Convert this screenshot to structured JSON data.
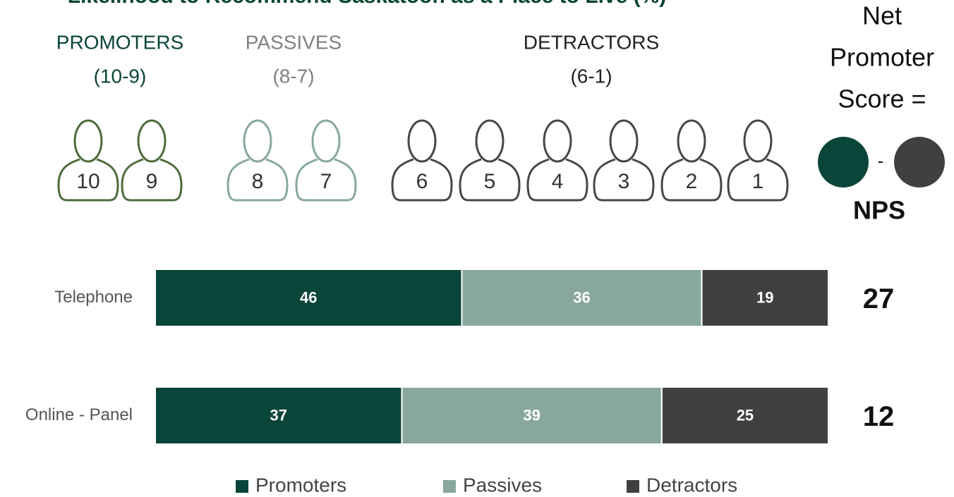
{
  "title": "Likelihood to Recommend Saskatoon as a Place to Live (%)",
  "groups": [
    {
      "name": "PROMOTERS",
      "range": "(10-9)",
      "label_color": "#0a4539",
      "icon_color": "#4e6b3a",
      "scores": [
        10,
        9
      ]
    },
    {
      "name": "PASSIVES",
      "range": "(8-7)",
      "label_color": "#808080",
      "icon_color": "#88a89b",
      "scores": [
        8,
        7
      ]
    },
    {
      "name": "DETRACTORS",
      "range": "(6-1)",
      "label_color": "#222222",
      "icon_color": "#4a4541",
      "scores": [
        6,
        5,
        4,
        3,
        2,
        1
      ]
    }
  ],
  "nps_formula": {
    "lines": [
      "Net",
      "Promoter",
      "Score ="
    ],
    "operator": "-",
    "result": "NPS",
    "colors": [
      "#0a4539",
      "#404040"
    ]
  },
  "chart_data": {
    "type": "bar",
    "orientation": "horizontal",
    "stacked": true,
    "categories": [
      "Telephone",
      "Online - Panel"
    ],
    "series": [
      {
        "name": "Promoters",
        "color": "#0a4539",
        "values": [
          46,
          37
        ]
      },
      {
        "name": "Passives",
        "color": "#88a89b",
        "values": [
          36,
          39
        ]
      },
      {
        "name": "Detractors",
        "color": "#404040",
        "values": [
          19,
          25
        ]
      }
    ],
    "nps": [
      27,
      12
    ],
    "legend": "bottom"
  }
}
